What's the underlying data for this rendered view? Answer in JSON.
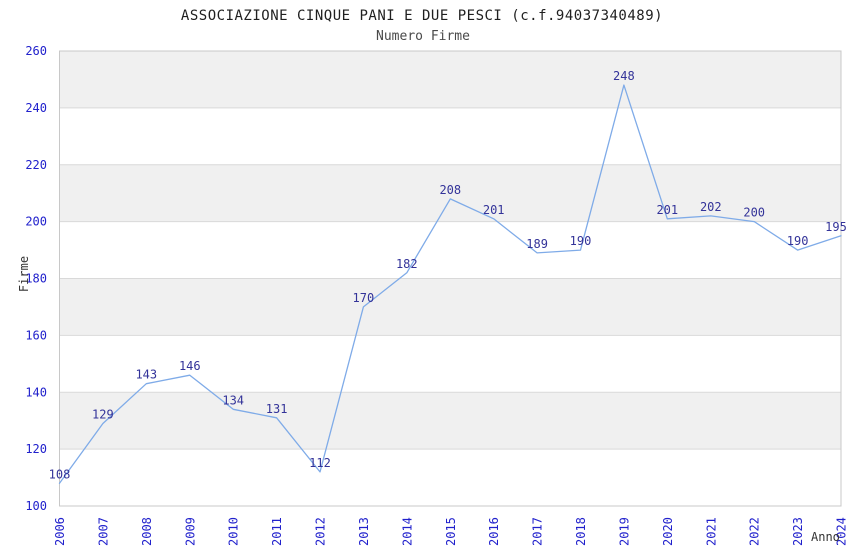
{
  "chart_data": {
    "type": "line",
    "title": "ASSOCIAZIONE CINQUE PANI E DUE PESCI (c.f.94037340489)",
    "subtitle": "Numero Firme",
    "xlabel": "Anno",
    "ylabel": "Firme",
    "x": [
      "2006",
      "2007",
      "2008",
      "2009",
      "2010",
      "2011",
      "2012",
      "2013",
      "2014",
      "2015",
      "2016",
      "2017",
      "2018",
      "2019",
      "2020",
      "2021",
      "2022",
      "2023",
      "2024"
    ],
    "values": [
      108,
      129,
      143,
      146,
      134,
      131,
      112,
      170,
      182,
      208,
      201,
      189,
      190,
      248,
      201,
      202,
      200,
      190,
      195
    ],
    "ylim": [
      100,
      260
    ],
    "ytick_step": 20,
    "grid": "horizontal-bands-alternating",
    "legend": "none",
    "point_labels_visible": true,
    "colors": {
      "line": "#7fabe8",
      "point_label": "#333399",
      "tick_label": "#2121cc",
      "band": "#f0f0f0",
      "grid_line": "#d9d9d9",
      "plot_border": "#c8c8c8",
      "title": "#1f1f1f",
      "subtitle": "#4a4a4a",
      "axis_label": "#333333",
      "background": "#ffffff"
    }
  }
}
